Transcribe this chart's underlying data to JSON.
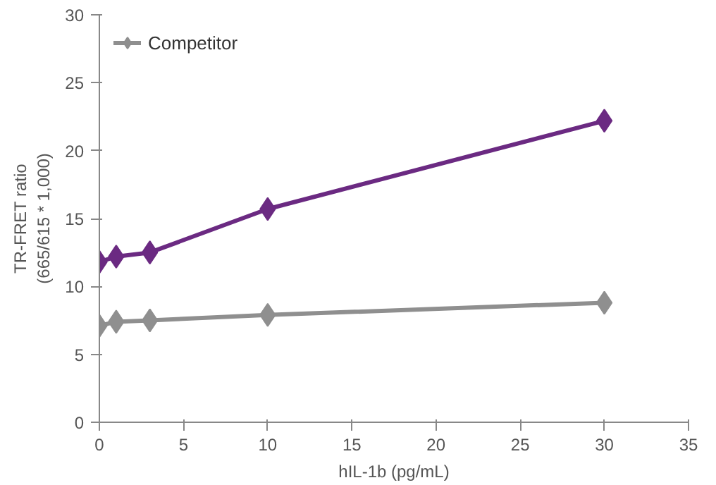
{
  "chart_data": {
    "type": "line",
    "xlabel": "hIL-1b (pg/mL)",
    "ylabel": "TR-FRET ratio\n(665/615 * 1,000)",
    "x": [
      0,
      1,
      3,
      10,
      30
    ],
    "series": [
      {
        "color": "#6b2a82",
        "values": [
          11.8,
          12.2,
          12.5,
          15.7,
          22.2
        ]
      },
      {
        "name": "Competitor",
        "color": "#8f8f8f",
        "values": [
          7.1,
          7.4,
          7.5,
          7.9,
          8.8
        ]
      }
    ],
    "xlim": [
      0,
      35
    ],
    "xticks": [
      0,
      5,
      10,
      15,
      20,
      25,
      30,
      35
    ],
    "ylim": [
      0,
      30
    ],
    "yticks": [
      0,
      5,
      10,
      15,
      20,
      25,
      30
    ],
    "grid": false,
    "legend": "top left",
    "marker": "diamond",
    "line_style": "solid"
  }
}
